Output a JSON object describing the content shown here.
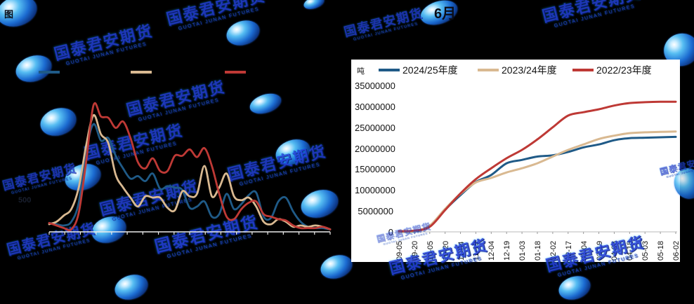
{
  "watermark": {
    "cjk": "国泰君安期货",
    "latin": "GUOTAI JUNAN FUTURES"
  },
  "fragments": {
    "figure_prefix": "图",
    "month": "6月",
    "partial_axis_value": "500"
  },
  "right_chart": {
    "unit_label": "吨",
    "legend": [
      {
        "label": "2024/25年度",
        "color": "#1F5A87"
      },
      {
        "label": "2023/24年度",
        "color": "#D9B991"
      },
      {
        "label": "2022/23年度",
        "color": "#BE3935"
      }
    ],
    "y_tick_labels": [
      "0",
      "5000000",
      "10000000",
      "15000000",
      "20000000",
      "25000000",
      "30000000",
      "35000000"
    ],
    "x_tick_labels": [
      "09-05",
      "09-20",
      "10-05",
      "10-20",
      "11-04",
      "11-19",
      "12-04",
      "12-19",
      "01-03",
      "01-18",
      "02-02",
      "02-17",
      "03-04",
      "03-19",
      "04-03",
      "04-18",
      "05-03",
      "05-18",
      "06-02"
    ]
  },
  "chart_data": [
    {
      "id": "left-weekly-chart",
      "type": "line",
      "title": "",
      "xlabel": "",
      "ylabel": "",
      "axis_labels_visible": false,
      "y_scale": "relative_0_100_axis_text_not_legible",
      "legend_visible_swatches_only": true,
      "series": [
        {
          "name": "blue",
          "color": "#1F5A87",
          "values": [
            7,
            6,
            5,
            8,
            23,
            64,
            85,
            72,
            74,
            60,
            50,
            42,
            44,
            40,
            46,
            34,
            36,
            35,
            33,
            19,
            20,
            24,
            12,
            14,
            30,
            18,
            22,
            29,
            31,
            12,
            11,
            24,
            27,
            16,
            8,
            4,
            3,
            3,
            2
          ]
        },
        {
          "name": "tan",
          "color": "#D9B991",
          "values": [
            6,
            8,
            13,
            18,
            35,
            68,
            92,
            77,
            70,
            45,
            35,
            27,
            20,
            28,
            27,
            27,
            19,
            17,
            32,
            28,
            30,
            52,
            28,
            35,
            46,
            28,
            25,
            27,
            20,
            8,
            6,
            10,
            8,
            4,
            5,
            4,
            5,
            4,
            2
          ]
        },
        {
          "name": "red",
          "color": "#BE3935",
          "values": [
            7,
            5,
            3,
            2,
            15,
            55,
            100,
            91,
            90,
            82,
            87,
            74,
            55,
            50,
            58,
            48,
            48,
            60,
            60,
            65,
            59,
            66,
            52,
            30,
            12,
            10,
            18,
            23,
            24,
            14,
            12,
            10,
            9,
            5,
            3,
            3,
            3,
            4,
            2
          ]
        }
      ]
    },
    {
      "id": "right-cumulative-chart",
      "type": "line",
      "title": "",
      "xlabel": "",
      "ylabel": "吨",
      "ylim": [
        0,
        35000000
      ],
      "y_ticks": [
        0,
        5000000,
        10000000,
        15000000,
        20000000,
        25000000,
        30000000,
        35000000
      ],
      "legend_position": "top",
      "categories": [
        "09-05",
        "09-20",
        "10-05",
        "10-20",
        "11-04",
        "11-19",
        "12-04",
        "12-19",
        "01-03",
        "01-18",
        "02-02",
        "02-17",
        "03-04",
        "03-19",
        "04-03",
        "04-18",
        "05-03",
        "05-18",
        "06-02"
      ],
      "series": [
        {
          "name": "2024/25年度",
          "color": "#1F5A87",
          "values": [
            20000,
            100000,
            1400000,
            5300000,
            8800000,
            11900000,
            13600000,
            16400000,
            17200000,
            18000000,
            18300000,
            19100000,
            20200000,
            20900000,
            21900000,
            22400000,
            22500000,
            22600000,
            22700000
          ]
        },
        {
          "name": "2023/24年度",
          "color": "#D9B991",
          "values": [
            50000,
            200000,
            1500000,
            5500000,
            9100000,
            11800000,
            12900000,
            14200000,
            15200000,
            16400000,
            18000000,
            19600000,
            20900000,
            22200000,
            23000000,
            23600000,
            23800000,
            23900000,
            24000000
          ]
        },
        {
          "name": "2022/23年度",
          "color": "#BE3935",
          "values": [
            170000,
            300000,
            1200000,
            5200000,
            9200000,
            12600000,
            15200000,
            17600000,
            19600000,
            22100000,
            25000000,
            27800000,
            28600000,
            29300000,
            30200000,
            30800000,
            31000000,
            31100000,
            31100000
          ]
        }
      ]
    }
  ]
}
